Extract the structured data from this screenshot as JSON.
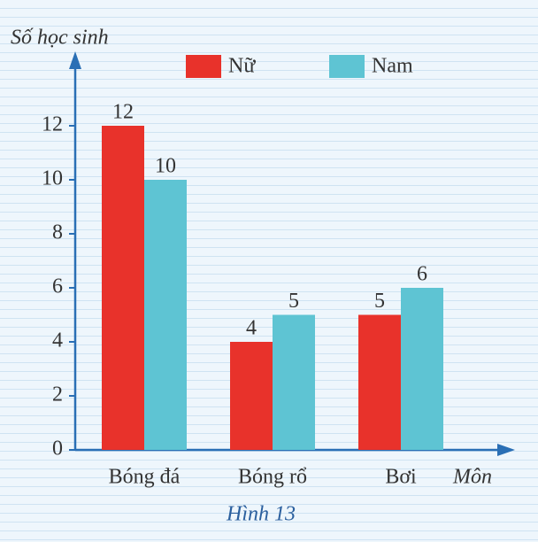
{
  "chart_data": {
    "type": "bar",
    "y_label": "Số học sinh",
    "x_label": "Môn",
    "caption": "Hình 13",
    "categories": [
      "Bóng đá",
      "Bóng rổ",
      "Bơi"
    ],
    "series": [
      {
        "name": "Nữ",
        "color": "#e8322b",
        "values": [
          12,
          4,
          5
        ]
      },
      {
        "name": "Nam",
        "color": "#5ec4d3",
        "values": [
          10,
          5,
          6
        ]
      }
    ],
    "ylim": [
      0,
      14
    ],
    "yticks": [
      0,
      2,
      4,
      6,
      8,
      10,
      12
    ],
    "legend": "top"
  }
}
